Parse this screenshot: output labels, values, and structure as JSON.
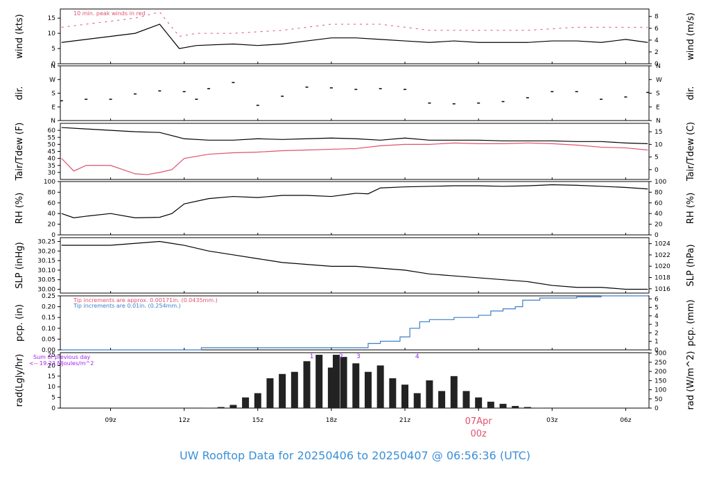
{
  "footer": {
    "title": "UW Rooftop Data for 20250406  to  20250407 @ 06:56:36  (UTC)"
  },
  "colors": {
    "black": "#000000",
    "red": "#e0506e",
    "blue": "#3a7ec8",
    "purple": "#a020f0",
    "footer": "#3a8fd8"
  },
  "time_axis": {
    "ticks": [
      {
        "hour": 9,
        "label": "09z"
      },
      {
        "hour": 12,
        "label": "12z"
      },
      {
        "hour": 15,
        "label": "15z"
      },
      {
        "hour": 18,
        "label": "18z"
      },
      {
        "hour": 21,
        "label": "21z"
      },
      {
        "hour": 24,
        "label": "07Apr",
        "label2": "00z",
        "emphasis": true
      },
      {
        "hour": 27,
        "label": "03z"
      },
      {
        "hour": 30,
        "label": "06z"
      }
    ],
    "range_hours": [
      6.95,
      30.95
    ]
  },
  "chart_data": [
    {
      "type": "line",
      "id": "wind",
      "ylabel": "wind (kts)",
      "y2label": "wind (m/s)",
      "ylim": [
        0,
        18
      ],
      "yticks": [
        0,
        5,
        10,
        15
      ],
      "y2ticks": [
        0,
        2,
        4,
        6,
        8,
        10
      ],
      "y2_factor": 0.5144,
      "annotation": "10 min. peak winds in red",
      "series": [
        {
          "name": "wind",
          "color": "#000000",
          "x": [
            7,
            8,
            9,
            10,
            11,
            11.3,
            11.8,
            12.5,
            14,
            15,
            16,
            17,
            18,
            19,
            20,
            21,
            22,
            23,
            24,
            25,
            26,
            27,
            28,
            29,
            30,
            30.9
          ],
          "y": [
            7,
            8,
            9,
            10,
            13,
            10,
            5,
            6,
            6.5,
            6,
            6.5,
            7.5,
            8.5,
            8.5,
            8,
            7.5,
            7,
            7.5,
            7,
            7,
            7,
            7.5,
            7.5,
            7,
            8,
            7
          ]
        },
        {
          "name": "peak",
          "color": "#e0506e",
          "x": [
            7,
            8,
            9,
            10,
            11,
            11.8,
            12.5,
            14,
            16,
            18,
            20,
            22,
            24,
            26,
            28,
            30,
            30.9
          ],
          "y": [
            12,
            13,
            14,
            15,
            17,
            9,
            10,
            10,
            11,
            13,
            13,
            11,
            11,
            11,
            12,
            12,
            12
          ]
        }
      ]
    },
    {
      "type": "scatter",
      "id": "dir",
      "ylabel": "dir.",
      "y2label": "dir.",
      "ylim": [
        0,
        360
      ],
      "yticklabels": [
        "N",
        "E",
        "S",
        "W",
        "N"
      ],
      "ytick_values": [
        0,
        90,
        180,
        270,
        360
      ],
      "series": [
        {
          "name": "direction",
          "color": "#000000",
          "x": [
            7,
            8,
            9,
            10,
            11,
            12,
            12.5,
            13,
            14,
            15,
            16,
            17,
            18,
            19,
            20,
            21,
            22,
            23,
            24,
            25,
            26,
            27,
            28,
            29,
            30,
            30.9
          ],
          "y": [
            130,
            140,
            140,
            175,
            195,
            190,
            140,
            210,
            250,
            100,
            160,
            220,
            215,
            205,
            210,
            205,
            115,
            110,
            115,
            125,
            150,
            190,
            190,
            140,
            155,
            185
          ]
        }
      ]
    },
    {
      "type": "line",
      "id": "temp",
      "ylabel": "Tair/Tdew (F)",
      "y2label": "Tair/Tdew (C)",
      "ylim": [
        25,
        65
      ],
      "yticks": [
        30,
        35,
        40,
        45,
        50,
        55,
        60
      ],
      "y2ticks": [
        0,
        5,
        10,
        15
      ],
      "series": [
        {
          "name": "Tair",
          "color": "#000000",
          "x": [
            7,
            8,
            9,
            10,
            11,
            12,
            13,
            14,
            15,
            16,
            17,
            18,
            19,
            20,
            21,
            22,
            23,
            24,
            25,
            26,
            27,
            28,
            29,
            30,
            30.9
          ],
          "y": [
            62,
            61,
            60,
            59,
            58.5,
            54,
            53,
            53,
            54,
            53.5,
            54,
            54.5,
            54,
            53,
            54.5,
            53,
            53,
            53,
            52.5,
            52.5,
            52.5,
            52,
            52,
            51,
            50.5
          ]
        },
        {
          "name": "Tdew",
          "color": "#e0506e",
          "x": [
            7,
            7.5,
            8,
            9,
            9.5,
            10,
            10.5,
            11,
            11.5,
            12,
            13,
            14,
            15,
            16,
            17,
            18,
            19,
            20,
            21,
            22,
            23,
            24,
            25,
            26,
            27,
            28,
            29,
            30,
            30.9
          ],
          "y": [
            40,
            31,
            35,
            35,
            32,
            29,
            28.5,
            30,
            32,
            40,
            43,
            44,
            44.5,
            45.5,
            46,
            46.5,
            47,
            49,
            50,
            50,
            51,
            50.5,
            50.5,
            51,
            50.5,
            49.5,
            48,
            47.5,
            46
          ]
        }
      ]
    },
    {
      "type": "line",
      "id": "rh",
      "ylabel": "RH (%)",
      "y2label": "RH (%)",
      "ylim": [
        0,
        100
      ],
      "yticks": [
        0,
        20,
        40,
        60,
        80,
        100
      ],
      "y2ticks": [
        0,
        20,
        40,
        60,
        80,
        100
      ],
      "series": [
        {
          "name": "RH",
          "color": "#000000",
          "x": [
            7,
            7.5,
            8,
            9,
            10,
            11,
            11.5,
            12,
            13,
            14,
            15,
            16,
            17,
            18,
            19,
            19.5,
            20,
            21,
            22,
            23,
            24,
            25,
            26,
            27,
            28,
            29,
            30,
            30.9
          ],
          "y": [
            40,
            32,
            35,
            40,
            32,
            33,
            40,
            58,
            68,
            72,
            70,
            74,
            74,
            72,
            78,
            77,
            88,
            90,
            91,
            92,
            92,
            91,
            92,
            94,
            93,
            91,
            89,
            86
          ]
        }
      ]
    },
    {
      "type": "line",
      "id": "slp",
      "ylabel": "SLP (inHg)",
      "y2label": "SLP (hPa)",
      "ylim": [
        29.98,
        30.27
      ],
      "yticks": [
        30.0,
        30.05,
        30.1,
        30.15,
        30.2,
        30.25
      ],
      "y2ticks": [
        1016,
        1018,
        1020,
        1022,
        1024
      ],
      "y2_offset_hpa": 33.8639,
      "series": [
        {
          "name": "SLP",
          "color": "#000000",
          "x": [
            7,
            8,
            9,
            10,
            11,
            12,
            13,
            14,
            15,
            16,
            17,
            18,
            19,
            20,
            21,
            22,
            23,
            24,
            25,
            26,
            27,
            28,
            29,
            30,
            30.9
          ],
          "y": [
            30.23,
            30.23,
            30.23,
            30.24,
            30.25,
            30.23,
            30.2,
            30.18,
            30.16,
            30.14,
            30.13,
            30.12,
            30.12,
            30.11,
            30.1,
            30.08,
            30.07,
            30.06,
            30.05,
            30.04,
            30.02,
            30.01,
            30.01,
            30.0,
            30.0
          ]
        }
      ]
    },
    {
      "type": "line",
      "id": "pcp",
      "ylabel": "pcp. (in)",
      "y2label": "pcp. (mm)",
      "ylim": [
        0,
        0.25
      ],
      "yticks": [
        0.0,
        0.05,
        0.1,
        0.15,
        0.2,
        0.25
      ],
      "y2ticks": [
        0,
        1,
        2,
        3,
        4,
        5,
        6
      ],
      "notes": [
        "Tip increments are approx. 0.00171in. (0.0435mm.)",
        "Tip increments are 0.01in. (0.254mm.)"
      ],
      "series": [
        {
          "name": "pcp",
          "color": "#3a7ec8",
          "step": true,
          "x": [
            7,
            12.7,
            19.5,
            20,
            20.8,
            21.2,
            21.6,
            22,
            23,
            24,
            24.5,
            25,
            25.5,
            25.8,
            26.5,
            28,
            29,
            30.9
          ],
          "y": [
            0,
            0.01,
            0.03,
            0.04,
            0.06,
            0.1,
            0.13,
            0.14,
            0.15,
            0.16,
            0.18,
            0.19,
            0.2,
            0.23,
            0.24,
            0.245,
            0.25,
            0.25
          ]
        }
      ]
    },
    {
      "type": "area",
      "id": "rad",
      "ylabel": "rad(Lgly/hr)",
      "y2label": "rad (W/m^2)",
      "ylim": [
        0,
        26
      ],
      "yticks": [
        0,
        5,
        10,
        15,
        20,
        25
      ],
      "y2ticks": [
        0,
        50,
        100,
        150,
        200,
        250,
        300
      ],
      "notes": [
        "Sum of previous day",
        "<-- 19.23 MJoules/m^2"
      ],
      "markers": [
        {
          "x": 17.2,
          "label": "1"
        },
        {
          "x": 18.4,
          "label": "2"
        },
        {
          "x": 19.1,
          "label": "3"
        },
        {
          "x": 21.5,
          "label": "4"
        }
      ],
      "series": [
        {
          "name": "rad",
          "color": "#222222",
          "x": [
            13,
            13.5,
            14,
            14.5,
            15,
            15.5,
            16,
            16.5,
            17,
            17.5,
            18,
            18.2,
            18.5,
            19,
            19.5,
            20,
            20.5,
            21,
            21.5,
            22,
            22.5,
            23,
            23.5,
            24,
            24.5,
            25,
            25.5,
            26,
            26.5,
            27
          ],
          "y": [
            0.1,
            0.5,
            1.5,
            5,
            7,
            14,
            16,
            17,
            22,
            25,
            19,
            25,
            24,
            21,
            17,
            20,
            14,
            11,
            7,
            13,
            8,
            15,
            8,
            5,
            3,
            2,
            1,
            0.5,
            0.1,
            0
          ]
        }
      ]
    }
  ]
}
